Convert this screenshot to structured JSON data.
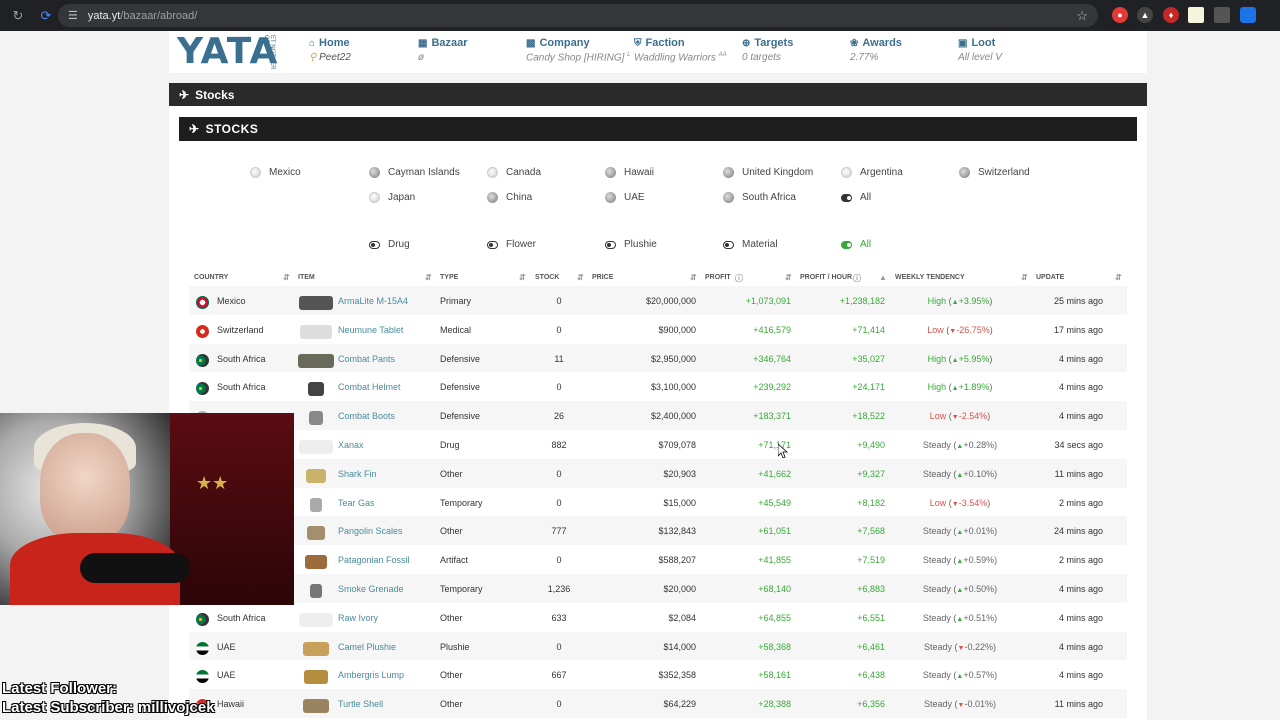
{
  "browser": {
    "url_host": "yata.yt",
    "url_path": "/bazaar/abroad/"
  },
  "site": {
    "logo": "YATA",
    "logo_sub": "ET NOTHER ORN",
    "nav": [
      {
        "label": "Home",
        "sub": "Peet22",
        "icon": "home-icon"
      },
      {
        "label": "Bazaar",
        "sub": "ø",
        "icon": "shop-icon"
      },
      {
        "label": "Company",
        "sub": "Candy Shop [HIRING]",
        "sup": "L",
        "icon": "building-icon"
      },
      {
        "label": "Faction",
        "sub": "Waddling Warriors",
        "sup": "AA",
        "icon": "shield-icon"
      },
      {
        "label": "Targets",
        "sub": "0 targets",
        "icon": "crosshair-icon"
      },
      {
        "label": "Awards",
        "sub": "2.77%",
        "icon": "medal-icon"
      },
      {
        "label": "Loot",
        "sub": "All level V",
        "icon": "lock-icon"
      }
    ]
  },
  "panel_title": "Stocks",
  "section_title": "STOCKS",
  "countries_row1": [
    "Mexico",
    "Cayman Islands",
    "Canada",
    "Hawaii",
    "United Kingdom",
    "Argentina",
    "Switzerland"
  ],
  "countries_row2": [
    "Japan",
    "China",
    "UAE",
    "South Africa",
    "All"
  ],
  "types": [
    "Drug",
    "Flower",
    "Plushie",
    "Material",
    "All"
  ],
  "columns": [
    "COUNTRY",
    "ITEM",
    "TYPE",
    "STOCK",
    "PRICE",
    "PROFIT",
    "PROFIT / HOUR",
    "WEEKLY TENDENCY",
    "UPDATE"
  ],
  "rows": [
    {
      "country": "Mexico",
      "item": "ArmaLite M-15A4",
      "type": "Primary",
      "stock": "0",
      "price": "$20,000,000",
      "profit": "+1,073,091",
      "pph": "+1,238,182",
      "trend": "High",
      "trend_pct": "+3.95%",
      "dir": "up",
      "update": "25 mins ago"
    },
    {
      "country": "Switzerland",
      "item": "Neumune Tablet",
      "type": "Medical",
      "stock": "0",
      "price": "$900,000",
      "profit": "+416,579",
      "pph": "+71,414",
      "trend": "Low",
      "trend_pct": "-26.75%",
      "dir": "down",
      "update": "17 mins ago"
    },
    {
      "country": "South Africa",
      "item": "Combat Pants",
      "type": "Defensive",
      "stock": "11",
      "price": "$2,950,000",
      "profit": "+346,764",
      "pph": "+35,027",
      "trend": "High",
      "trend_pct": "+5.95%",
      "dir": "up",
      "update": "4 mins ago"
    },
    {
      "country": "South Africa",
      "item": "Combat Helmet",
      "type": "Defensive",
      "stock": "0",
      "price": "$3,100,000",
      "profit": "+239,292",
      "pph": "+24,171",
      "trend": "High",
      "trend_pct": "+1.89%",
      "dir": "up",
      "update": "4 mins ago"
    },
    {
      "country": "",
      "item": "Combat Boots",
      "type": "Defensive",
      "stock": "26",
      "price": "$2,400,000",
      "profit": "+183,371",
      "pph": "+18,522",
      "trend": "Low",
      "trend_pct": "-2.54%",
      "dir": "down",
      "update": "4 mins ago"
    },
    {
      "country": "",
      "item": "Xanax",
      "type": "Drug",
      "stock": "882",
      "price": "$709,078",
      "profit": "+71,171",
      "pph": "+9,490",
      "trend": "Steady",
      "trend_pct": "+0.28%",
      "dir": "up",
      "update": "34 secs ago"
    },
    {
      "country": "",
      "item": "Shark Fin",
      "type": "Other",
      "stock": "0",
      "price": "$20,903",
      "profit": "+41,662",
      "pph": "+9,327",
      "trend": "Steady",
      "trend_pct": "+0.10%",
      "dir": "up",
      "update": "11 mins ago"
    },
    {
      "country": "",
      "item": "Tear Gas",
      "type": "Temporary",
      "stock": "0",
      "price": "$15,000",
      "profit": "+45,549",
      "pph": "+8,182",
      "trend": "Low",
      "trend_pct": "-3.54%",
      "dir": "down",
      "update": "2 mins ago"
    },
    {
      "country": "",
      "item": "Pangolin Scales",
      "type": "Other",
      "stock": "777",
      "price": "$132,843",
      "profit": "+61,051",
      "pph": "+7,568",
      "trend": "Steady",
      "trend_pct": "+0.01%",
      "dir": "up",
      "update": "24 mins ago"
    },
    {
      "country": "",
      "item": "Patagonian Fossil",
      "type": "Artifact",
      "stock": "0",
      "price": "$588,207",
      "profit": "+41,855",
      "pph": "+7,519",
      "trend": "Steady",
      "trend_pct": "+0.59%",
      "dir": "up",
      "update": "2 mins ago"
    },
    {
      "country": "",
      "item": "Smoke Grenade",
      "type": "Temporary",
      "stock": "1,236",
      "price": "$20,000",
      "profit": "+68,140",
      "pph": "+6,883",
      "trend": "Steady",
      "trend_pct": "+0.50%",
      "dir": "up",
      "update": "4 mins ago"
    },
    {
      "country": "South Africa",
      "item": "Raw Ivory",
      "type": "Other",
      "stock": "633",
      "price": "$2,084",
      "profit": "+64,855",
      "pph": "+6,551",
      "trend": "Steady",
      "trend_pct": "+0.51%",
      "dir": "up",
      "update": "4 mins ago"
    },
    {
      "country": "UAE",
      "item": "Camel Plushie",
      "type": "Plushie",
      "stock": "0",
      "price": "$14,000",
      "profit": "+58,368",
      "pph": "+6,461",
      "trend": "Steady",
      "trend_pct": "-0.22%",
      "dir": "down",
      "update": "4 mins ago"
    },
    {
      "country": "UAE",
      "item": "Ambergris Lump",
      "type": "Other",
      "stock": "667",
      "price": "$352,358",
      "profit": "+58,161",
      "pph": "+6,438",
      "trend": "Steady",
      "trend_pct": "+0.57%",
      "dir": "up",
      "update": "4 mins ago"
    },
    {
      "country": "Hawaii",
      "item": "Turtle Shell",
      "type": "Other",
      "stock": "0",
      "price": "$64,229",
      "profit": "+28,388",
      "pph": "+6,356",
      "trend": "Steady",
      "trend_pct": "-0.01%",
      "dir": "down",
      "update": "11 mins ago"
    }
  ],
  "stream": {
    "follower": "Latest Follower:",
    "subscriber": "Latest Subscriber: millivojcek"
  },
  "colors": {
    "accent": "#3b6f8f",
    "profit": "#3aa83a",
    "low": "#d9534f"
  }
}
